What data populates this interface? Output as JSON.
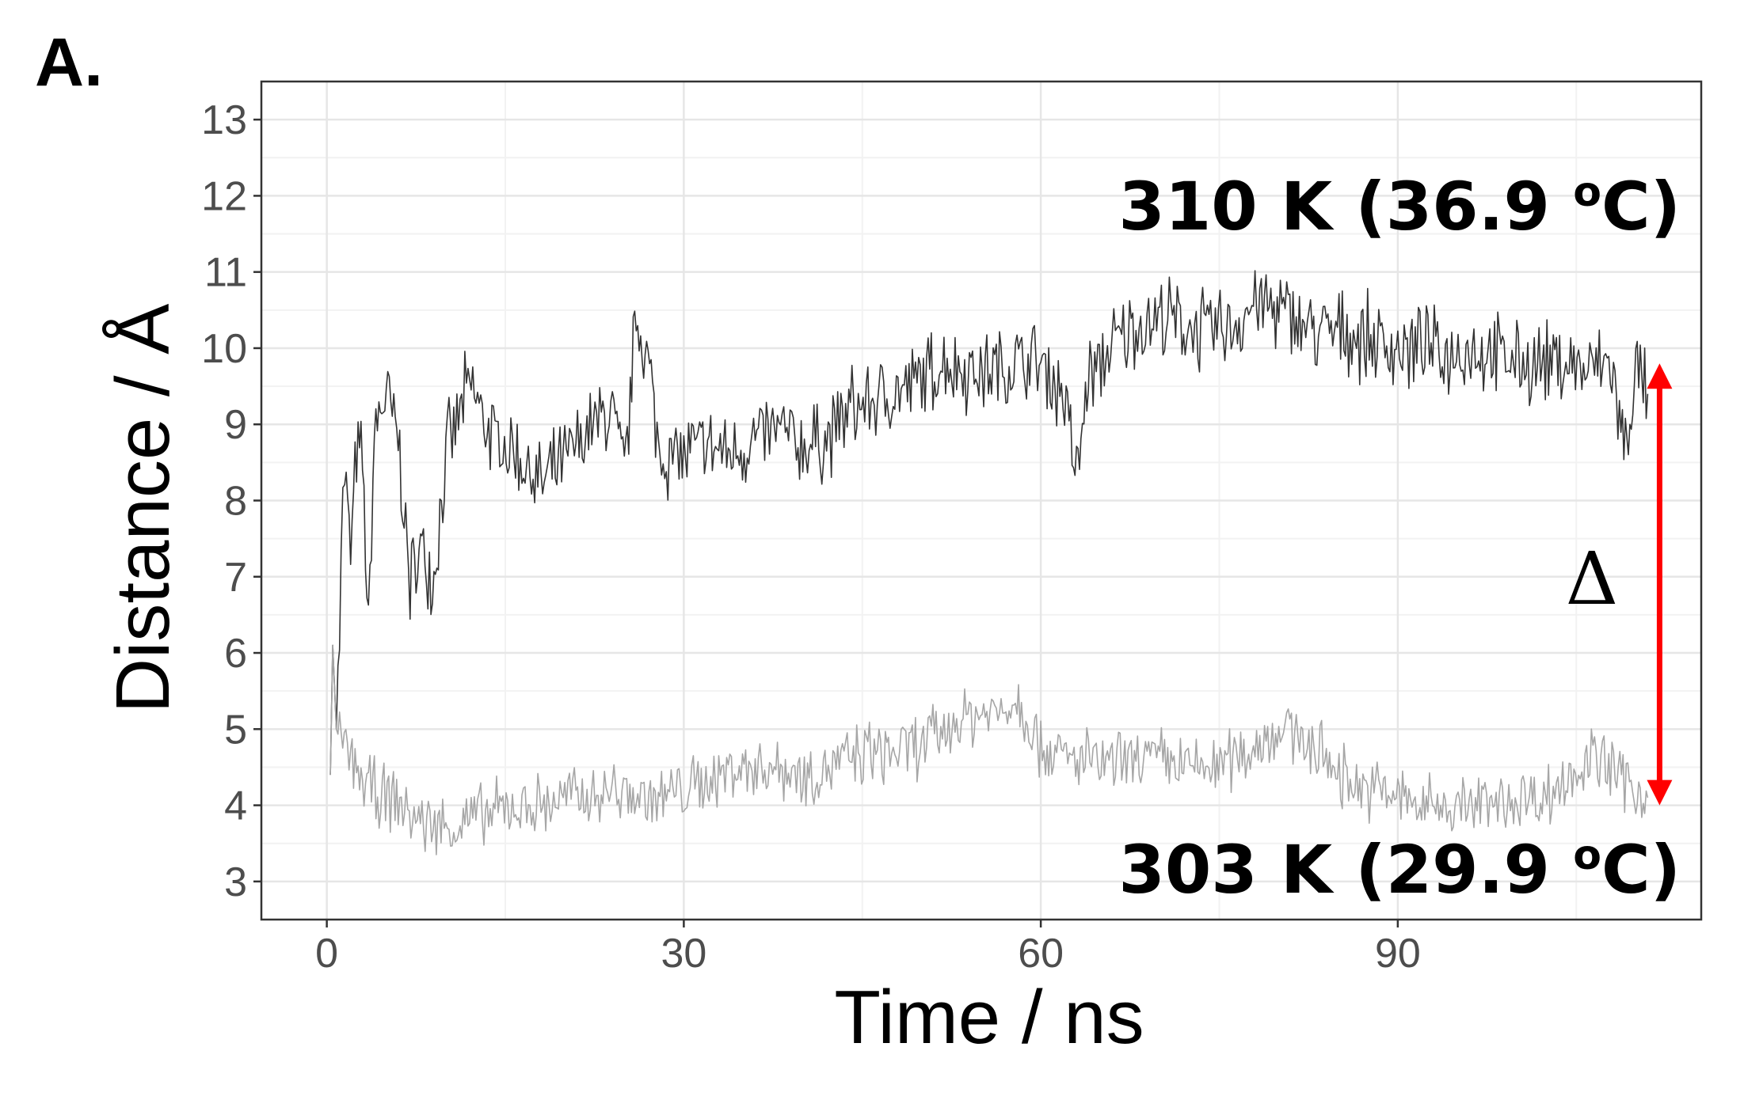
{
  "panel_label": "A.",
  "chart_data": {
    "type": "line",
    "xlabel": "Time / ns",
    "ylabel": "Distance / Å",
    "xlim": [
      -5.5,
      115.5
    ],
    "ylim": [
      2.5,
      13.5
    ],
    "x_ticks": [
      0,
      30,
      60,
      90
    ],
    "y_ticks": [
      3,
      4,
      5,
      6,
      7,
      8,
      9,
      10,
      11,
      12,
      13
    ],
    "grid": true,
    "series": [
      {
        "label": "310 K (36.9 oC)",
        "color": "#333333",
        "points": [
          [
            0.3,
            4.4
          ],
          [
            0.5,
            6.1
          ],
          [
            0.8,
            5.0
          ],
          [
            1.2,
            7.5
          ],
          [
            1.5,
            8.4
          ],
          [
            2,
            7.3
          ],
          [
            2.5,
            8.6
          ],
          [
            3,
            8.5
          ],
          [
            3.5,
            6.2
          ],
          [
            4,
            8.9
          ],
          [
            5,
            9.4
          ],
          [
            6,
            8.8
          ],
          [
            7,
            6.9
          ],
          [
            8,
            7.4
          ],
          [
            9,
            7.0
          ],
          [
            10,
            8.6
          ],
          [
            12,
            9.5
          ],
          [
            14,
            8.8
          ],
          [
            16,
            8.6
          ],
          [
            18,
            8.2
          ],
          [
            20,
            8.5
          ],
          [
            22,
            8.9
          ],
          [
            24,
            9.2
          ],
          [
            25,
            8.3
          ],
          [
            26,
            10.4
          ],
          [
            27,
            9.8
          ],
          [
            28,
            8.6
          ],
          [
            30,
            8.6
          ],
          [
            32,
            8.7
          ],
          [
            34,
            8.6
          ],
          [
            36,
            8.8
          ],
          [
            38,
            8.9
          ],
          [
            40,
            8.7
          ],
          [
            42,
            8.8
          ],
          [
            44,
            9.2
          ],
          [
            46,
            9.3
          ],
          [
            48,
            9.4
          ],
          [
            50,
            9.6
          ],
          [
            52,
            9.8
          ],
          [
            54,
            9.7
          ],
          [
            56,
            9.7
          ],
          [
            58,
            9.8
          ],
          [
            60,
            9.8
          ],
          [
            62,
            9.4
          ],
          [
            63,
            8.3
          ],
          [
            64,
            9.6
          ],
          [
            66,
            10.0
          ],
          [
            68,
            10.3
          ],
          [
            70,
            10.4
          ],
          [
            72,
            10.3
          ],
          [
            74,
            10.2
          ],
          [
            76,
            10.3
          ],
          [
            78,
            10.6
          ],
          [
            80,
            10.5
          ],
          [
            82,
            10.3
          ],
          [
            84,
            10.2
          ],
          [
            86,
            10.2
          ],
          [
            88,
            10.1
          ],
          [
            90,
            10.0
          ],
          [
            92,
            10.0
          ],
          [
            94,
            9.9
          ],
          [
            96,
            10.0
          ],
          [
            98,
            9.9
          ],
          [
            100,
            9.8
          ],
          [
            102,
            9.8
          ],
          [
            104,
            9.8
          ],
          [
            106,
            9.7
          ],
          [
            108,
            9.8
          ],
          [
            109,
            8.6
          ],
          [
            110,
            9.7
          ],
          [
            111,
            9.4
          ]
        ]
      },
      {
        "label": "303 K (29.9 oC)",
        "color": "#a6a6a6",
        "points": [
          [
            0.3,
            4.4
          ],
          [
            0.5,
            6.1
          ],
          [
            0.8,
            5.0
          ],
          [
            1.2,
            4.8
          ],
          [
            2,
            4.6
          ],
          [
            3,
            4.3
          ],
          [
            4,
            4.2
          ],
          [
            6,
            4.0
          ],
          [
            8,
            3.8
          ],
          [
            10,
            3.7
          ],
          [
            12,
            3.8
          ],
          [
            14,
            3.9
          ],
          [
            16,
            4.0
          ],
          [
            18,
            4.0
          ],
          [
            20,
            4.1
          ],
          [
            22,
            4.1
          ],
          [
            24,
            4.2
          ],
          [
            26,
            4.1
          ],
          [
            28,
            4.1
          ],
          [
            30,
            4.2
          ],
          [
            32,
            4.3
          ],
          [
            34,
            4.5
          ],
          [
            36,
            4.5
          ],
          [
            38,
            4.5
          ],
          [
            40,
            4.4
          ],
          [
            42,
            4.5
          ],
          [
            44,
            4.6
          ],
          [
            46,
            4.7
          ],
          [
            48,
            4.7
          ],
          [
            50,
            4.8
          ],
          [
            52,
            5.0
          ],
          [
            54,
            5.2
          ],
          [
            56,
            5.2
          ],
          [
            58,
            5.4
          ],
          [
            59,
            5.1
          ],
          [
            60,
            4.8
          ],
          [
            62,
            4.6
          ],
          [
            64,
            4.6
          ],
          [
            66,
            4.5
          ],
          [
            68,
            4.6
          ],
          [
            70,
            4.6
          ],
          [
            72,
            4.5
          ],
          [
            74,
            4.5
          ],
          [
            76,
            4.6
          ],
          [
            78,
            4.8
          ],
          [
            80,
            5.0
          ],
          [
            82,
            4.9
          ],
          [
            84,
            4.6
          ],
          [
            86,
            4.3
          ],
          [
            88,
            4.2
          ],
          [
            90,
            4.1
          ],
          [
            92,
            4.0
          ],
          [
            94,
            4.0
          ],
          [
            96,
            4.0
          ],
          [
            98,
            4.0
          ],
          [
            100,
            4.1
          ],
          [
            102,
            4.1
          ],
          [
            104,
            4.3
          ],
          [
            106,
            4.6
          ],
          [
            108,
            4.5
          ],
          [
            110,
            4.2
          ],
          [
            111,
            4.1
          ]
        ]
      }
    ],
    "annotations": {
      "top": {
        "main": "310 K (36.9 ",
        "sup": "o",
        "tail": "C)"
      },
      "bottom": {
        "main": "303 K (29.9 ",
        "sup": "o",
        "tail": "C)"
      },
      "delta": "Δ",
      "arrow": {
        "x": 112,
        "y_from": 4.0,
        "y_to": 9.8,
        "color": "#ff0000"
      }
    }
  }
}
